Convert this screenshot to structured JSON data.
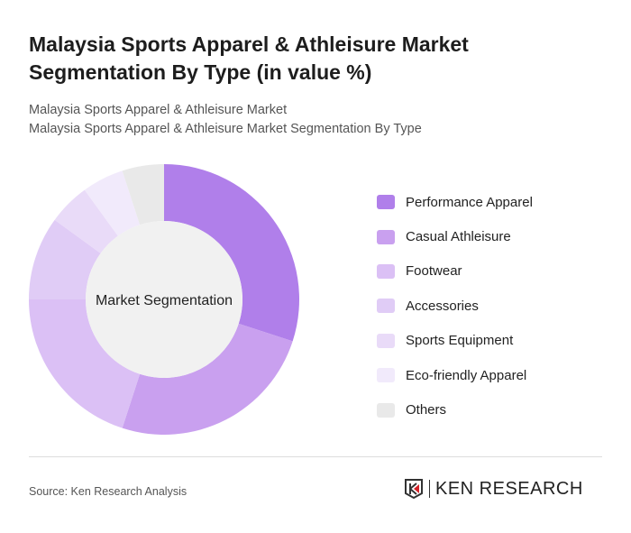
{
  "title": "Malaysia Sports Apparel & Athleisure Market Segmentation By Type (in value %)",
  "subtitle1": "Malaysia Sports Apparel & Athleisure Market",
  "subtitle2": "Malaysia Sports Apparel & Athleisure Market Segmentation By Type",
  "source": "Source: Ken Research Analysis",
  "logo_text": "KEN RESEARCH",
  "chart_data": {
    "type": "pie",
    "variant": "donut",
    "center_label": "Market Segmentation",
    "legend_position": "right",
    "categories": [
      "Performance Apparel",
      "Casual Athleisure",
      "Footwear",
      "Accessories",
      "Sports Equipment",
      "Eco-friendly Apparel",
      "Others"
    ],
    "values": [
      30,
      25,
      20,
      10,
      5,
      5,
      5
    ],
    "colors": [
      "#b07fea",
      "#c9a0ef",
      "#dbc0f5",
      "#e0ccf6",
      "#e9dbf8",
      "#f1eafb",
      "#e9e9e9"
    ]
  }
}
